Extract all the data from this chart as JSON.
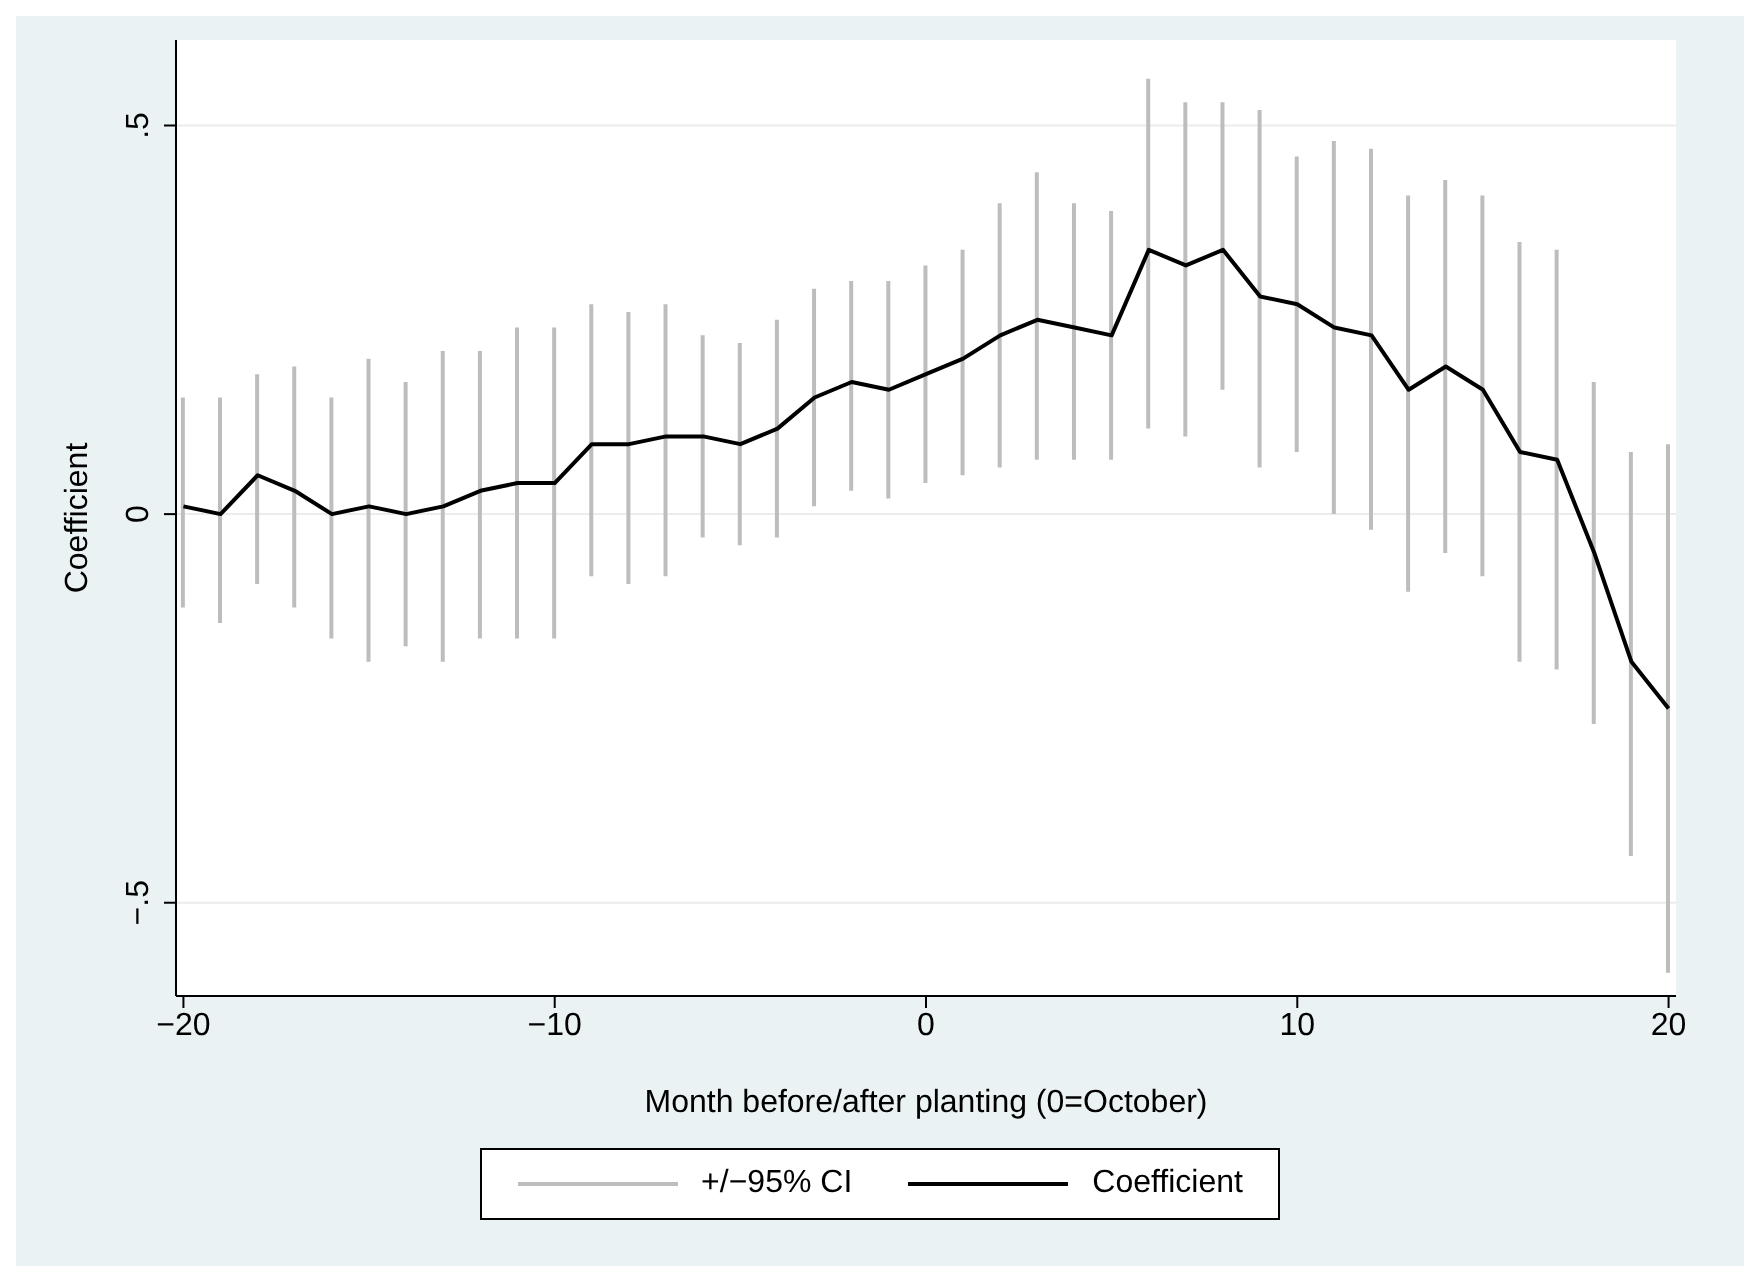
{
  "chart_data": {
    "type": "line",
    "xlabel": "Month before/after planting (0=October)",
    "ylabel": "Coefficient",
    "x": [
      -20,
      -19,
      -18,
      -17,
      -16,
      -15,
      -14,
      -13,
      -12,
      -11,
      -10,
      -9,
      -8,
      -7,
      -6,
      -5,
      -4,
      -3,
      -2,
      -1,
      0,
      1,
      2,
      3,
      4,
      5,
      6,
      7,
      8,
      9,
      10,
      11,
      12,
      13,
      14,
      15,
      16,
      17,
      18,
      19,
      20
    ],
    "series": [
      {
        "name": "+/−95% CI",
        "type": "bar",
        "color": "#bdbdbd",
        "base": [
          -0.12,
          -0.14,
          -0.09,
          -0.12,
          -0.16,
          -0.19,
          -0.17,
          -0.19,
          -0.16,
          -0.16,
          -0.16,
          -0.08,
          -0.09,
          -0.08,
          -0.03,
          -0.04,
          -0.03,
          0.01,
          0.03,
          0.02,
          0.04,
          0.05,
          0.06,
          0.07,
          0.07,
          0.07,
          0.11,
          0.1,
          0.16,
          0.06,
          0.08,
          0,
          -0.02,
          -0.1,
          -0.05,
          -0.08,
          -0.19,
          -0.2,
          -0.27,
          -0.44,
          -0.59
        ],
        "values": [
          0.27,
          0.29,
          0.27,
          0.31,
          0.31,
          0.39,
          0.34,
          0.4,
          0.37,
          0.4,
          0.4,
          0.35,
          0.35,
          0.35,
          0.26,
          0.26,
          0.28,
          0.28,
          0.27,
          0.28,
          0.28,
          0.29,
          0.34,
          0.37,
          0.33,
          0.32,
          0.45,
          0.43,
          0.37,
          0.46,
          0.38,
          0.48,
          0.49,
          0.51,
          0.48,
          0.49,
          0.54,
          0.54,
          0.44,
          0.52,
          0.68
        ]
      },
      {
        "name": "Coefficient",
        "color": "#000000",
        "values": [
          0.01,
          0,
          0.05,
          0.03,
          0,
          0.01,
          0,
          0.01,
          0.03,
          0.04,
          0.04,
          0.09,
          0.09,
          0.1,
          0.1,
          0.09,
          0.11,
          0.15,
          0.17,
          0.16,
          0.18,
          0.2,
          0.23,
          0.25,
          0.24,
          0.23,
          0.34,
          0.32,
          0.34,
          0.28,
          0.27,
          0.24,
          0.23,
          0.16,
          0.19,
          0.16,
          0.08,
          0.07,
          -0.05,
          -0.19,
          -0.25
        ]
      }
    ],
    "xlim": [
      -20.2,
      20.2
    ],
    "xticks": [
      {
        "value": -20,
        "label": "−20"
      },
      {
        "value": -10,
        "label": "−10"
      },
      0,
      10,
      20
    ],
    "ylim": [
      -0.62,
      0.61
    ],
    "yticks": [
      {
        "value": -0.5,
        "label": "−.5"
      },
      {
        "value": 0,
        "label": "0"
      },
      {
        "value": 0.5,
        "label": ".5"
      }
    ],
    "grid": "y",
    "legend": "bottom",
    "marker": "none",
    "line_style": "solid"
  }
}
